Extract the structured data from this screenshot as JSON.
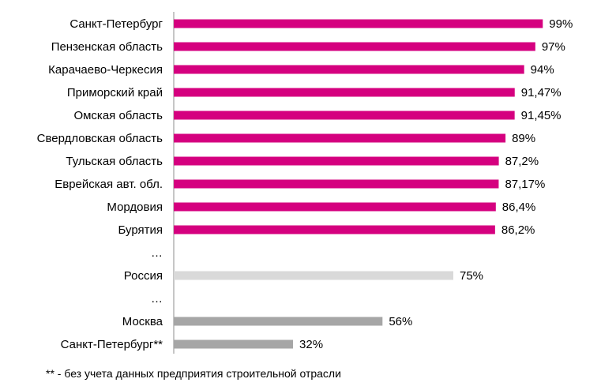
{
  "chart_data": {
    "type": "bar",
    "orientation": "horizontal",
    "xlim": [
      0,
      100
    ],
    "grid": false,
    "rows": [
      {
        "label": "Санкт-Петербург",
        "value": 99,
        "value_label": "99%",
        "color": "#d5007f"
      },
      {
        "label": "Пензенская область",
        "value": 97,
        "value_label": "97%",
        "color": "#d5007f"
      },
      {
        "label": "Карачаево-Черкесия",
        "value": 94,
        "value_label": "94%",
        "color": "#d5007f"
      },
      {
        "label": "Приморский край",
        "value": 91.47,
        "value_label": "91,47%",
        "color": "#d5007f"
      },
      {
        "label": "Омская область",
        "value": 91.45,
        "value_label": "91,45%",
        "color": "#d5007f"
      },
      {
        "label": "Свердловская область",
        "value": 89,
        "value_label": "89%",
        "color": "#d5007f"
      },
      {
        "label": "Тульская область",
        "value": 87.2,
        "value_label": "87,2%",
        "color": "#d5007f"
      },
      {
        "label": "Еврейская авт. обл.",
        "value": 87.17,
        "value_label": "87,17%",
        "color": "#d5007f"
      },
      {
        "label": "Мордовия",
        "value": 86.4,
        "value_label": "86,4%",
        "color": "#d5007f"
      },
      {
        "label": "Бурятия",
        "value": 86.2,
        "value_label": "86,2%",
        "color": "#d5007f"
      },
      {
        "label": "…",
        "value": null,
        "value_label": "",
        "color": ""
      },
      {
        "label": "Россия",
        "value": 75,
        "value_label": "75%",
        "color": "#d9d9d9"
      },
      {
        "label": "…",
        "value": null,
        "value_label": "",
        "color": ""
      },
      {
        "label": "Москва",
        "value": 56,
        "value_label": "56%",
        "color": "#a6a6a6"
      },
      {
        "label": "Санкт-Петербург**",
        "value": 32,
        "value_label": "32%",
        "color": "#a6a6a6"
      }
    ]
  },
  "footnote": "** - без учета данных предприятия строительной отрасли"
}
